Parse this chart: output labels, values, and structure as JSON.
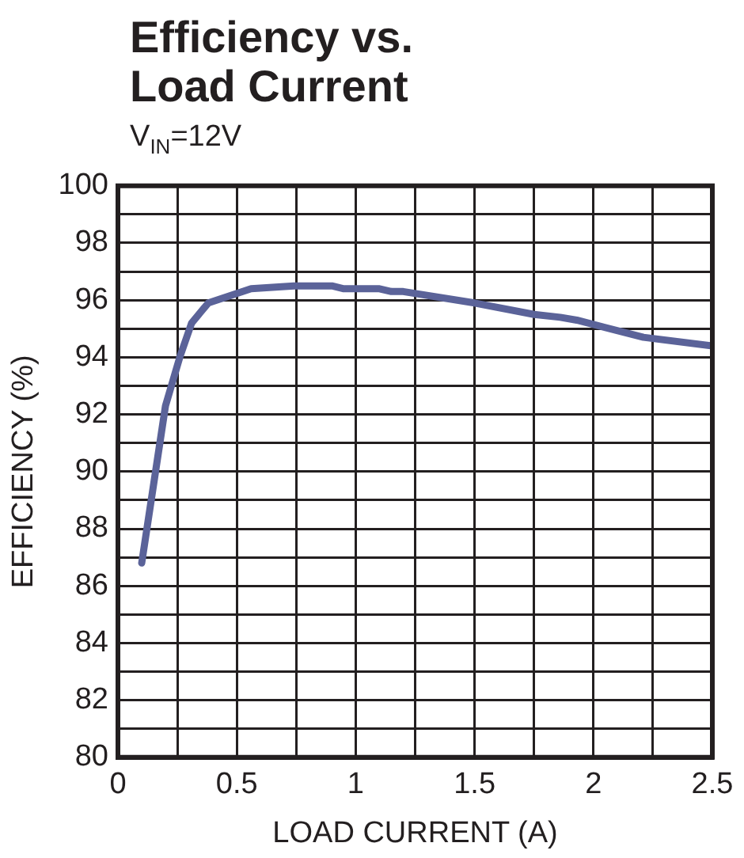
{
  "chart_data": {
    "type": "line",
    "title": "Efficiency vs.\nLoad Current",
    "subtitle": "V$_{IN}$=12V",
    "xlabel": "LOAD CURRENT (A)",
    "ylabel": "EFFICIENCY (%)",
    "series": [
      {
        "color": "#5b6399",
        "x": [
          0.1,
          0.2,
          0.26,
          0.31,
          0.38,
          0.56,
          0.74,
          0.9,
          0.95,
          1.1,
          1.15,
          1.2,
          1.5,
          1.75,
          1.86,
          1.93,
          2.21,
          2.5
        ],
        "values": [
          86.8,
          92.3,
          94.0,
          95.2,
          95.9,
          96.4,
          96.5,
          96.5,
          96.4,
          96.4,
          96.3,
          96.3,
          95.9,
          95.5,
          95.4,
          95.3,
          94.7,
          94.4
        ]
      }
    ],
    "xlim": [
      0,
      2.5
    ],
    "xticks": [
      0,
      {
        "value": 0.25,
        "label": null
      },
      0.5,
      {
        "value": 0.75,
        "label": null
      },
      1,
      {
        "value": 1.25,
        "label": null
      },
      1.5,
      {
        "value": 1.75,
        "label": null
      },
      2,
      {
        "value": 2.25,
        "label": null
      },
      2.5
    ],
    "ylim": [
      80,
      100
    ],
    "yticks": [
      80,
      {
        "value": 81,
        "label": null
      },
      82,
      {
        "value": 83,
        "label": null
      },
      84,
      {
        "value": 85,
        "label": null
      },
      86,
      {
        "value": 87,
        "label": null
      },
      88,
      {
        "value": 89,
        "label": null
      },
      90,
      {
        "value": 91,
        "label": null
      },
      92,
      {
        "value": 93,
        "label": null
      },
      94,
      {
        "value": 95,
        "label": null
      },
      96,
      {
        "value": 97,
        "label": null
      },
      98,
      {
        "value": 99,
        "label": null
      },
      100
    ],
    "grid": true,
    "legend": false,
    "marker": "none",
    "line_style": "solid"
  }
}
